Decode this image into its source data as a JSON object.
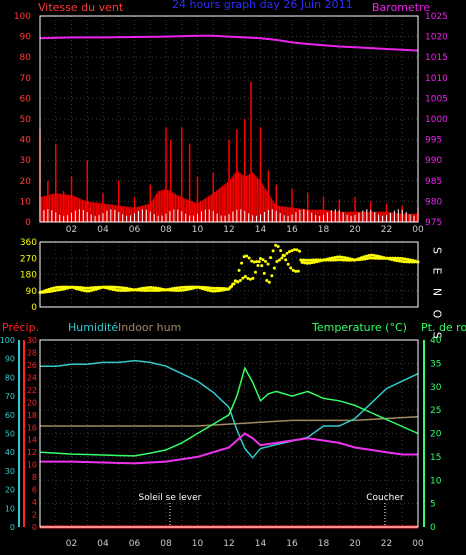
{
  "colors": {
    "background": "#000000",
    "frame": "#ffffff",
    "grid": "#3a3a3a",
    "wind_label": "#ff3b3b",
    "title": "#2d2dff",
    "baro": "#ee22ee",
    "wind_avg": "#ff0000",
    "wind_gust": "#ffffff",
    "wind_gust2": "#ffff66",
    "direction": "#ffff00",
    "precip": "#ff2222",
    "humidity": "#33cccc",
    "indoor_hum": "#a08a60",
    "temperature": "#33ff66",
    "dewpoint": "#ee33ee",
    "text_white": "#ffffff",
    "tick_label": "#cccccc"
  },
  "chart_data": [
    {
      "type": "line",
      "title": "24 hours graph day  26 Juin 2011",
      "ylabel_left": "Vitesse du vent",
      "ylabel_right": "Barometre",
      "left_ticks": [
        "0",
        "10",
        "20",
        "30",
        "40",
        "50",
        "60",
        "70",
        "80",
        "90",
        "100"
      ],
      "right_ticks": [
        "975",
        "980",
        "985",
        "990",
        "995",
        "1000",
        "1005",
        "1010",
        "1015",
        "1020",
        "1025"
      ],
      "x_ticks": [
        "02",
        "04",
        "06",
        "08",
        "10",
        "12",
        "14",
        "16",
        "18",
        "20",
        "22",
        "00"
      ],
      "ylim_left": [
        0,
        100
      ],
      "ylim_right": [
        975,
        1025
      ],
      "x_range_hours": [
        0,
        24
      ],
      "series": [
        {
          "name": "Barometre",
          "axis": "right",
          "x": [
            0,
            2,
            4,
            6,
            8,
            10,
            11,
            12,
            13,
            14,
            15,
            16,
            17,
            18,
            19,
            20,
            21,
            22,
            23,
            24
          ],
          "values": [
            1019.6,
            1019.8,
            1019.8,
            1019.9,
            1020.0,
            1020.2,
            1020.2,
            1020.0,
            1019.8,
            1019.6,
            1019.2,
            1018.6,
            1018.2,
            1017.9,
            1017.6,
            1017.4,
            1017.2,
            1017.0,
            1016.8,
            1016.6
          ]
        },
        {
          "name": "Vitesse moyenne",
          "axis": "left",
          "x": [
            0,
            1,
            2,
            3,
            4,
            5,
            6,
            7,
            7.5,
            8,
            8.5,
            9,
            10,
            11,
            12,
            12.5,
            13,
            13.5,
            14,
            14.5,
            15,
            16,
            17,
            18,
            19,
            20,
            21,
            22,
            23,
            24
          ],
          "values": [
            12,
            14,
            13,
            10,
            9,
            8,
            7,
            9,
            15,
            16,
            14,
            12,
            9,
            14,
            20,
            25,
            22,
            24,
            20,
            14,
            8,
            7,
            6,
            6,
            5,
            5,
            5,
            5,
            4,
            4
          ]
        },
        {
          "name": "Rafales",
          "axis": "left",
          "x": [
            0,
            0.5,
            1,
            1.5,
            2,
            3,
            4,
            5,
            6,
            7,
            8,
            8.3,
            9,
            9.5,
            10,
            11,
            12,
            12.5,
            13,
            13.4,
            14,
            14.5,
            15,
            16,
            17,
            18,
            19,
            20,
            21,
            22,
            23,
            24
          ],
          "values": [
            45,
            20,
            38,
            15,
            22,
            30,
            14,
            20,
            12,
            18,
            46,
            40,
            46,
            38,
            22,
            24,
            40,
            45,
            50,
            68,
            46,
            25,
            18,
            16,
            14,
            12,
            11,
            12,
            10,
            9,
            8,
            7
          ]
        }
      ]
    },
    {
      "type": "scatter",
      "title": "",
      "ylabel_right": "S E N O S",
      "ylim": [
        0,
        360
      ],
      "y_ticks": [
        "0",
        "90",
        "180",
        "270",
        "360"
      ],
      "series": [
        {
          "name": "Direction",
          "x": [
            0,
            1,
            2,
            3,
            4,
            5,
            6,
            7,
            8,
            9,
            10,
            11,
            12,
            12.5,
            13,
            13.5,
            14,
            14.5,
            15,
            15.5,
            16,
            17,
            18,
            19,
            20,
            21,
            22,
            23,
            24
          ],
          "values": [
            80,
            100,
            110,
            95,
            110,
            100,
            95,
            100,
            95,
            100,
            110,
            95,
            100,
            150,
            230,
            200,
            260,
            180,
            300,
            280,
            260,
            250,
            260,
            270,
            260,
            280,
            270,
            260,
            250
          ]
        }
      ]
    },
    {
      "type": "line",
      "title": "",
      "labels": {
        "precip": "Précip.",
        "humidity": "Humidité",
        "indoor_hum": "Indoor hum",
        "temperature": "Temperature (°C)",
        "dewpoint": "Pt. de rosée"
      },
      "precip_ticks": [
        "0",
        "2",
        "4",
        "6",
        "8",
        "10",
        "12",
        "14",
        "16",
        "18",
        "20",
        "22",
        "24",
        "26",
        "28",
        "30"
      ],
      "hum_ticks": [
        "0",
        "10",
        "20",
        "30",
        "40",
        "50",
        "60",
        "70",
        "80",
        "90",
        "100"
      ],
      "temp_ticks": [
        "0",
        "5",
        "10",
        "15",
        "20",
        "25",
        "30",
        "35",
        "40"
      ],
      "precip_ylim": [
        0,
        30
      ],
      "hum_ylim": [
        0,
        100
      ],
      "temp_ylim": [
        0,
        40
      ],
      "x_ticks": [
        "02",
        "04",
        "06",
        "08",
        "10",
        "12",
        "14",
        "16",
        "18",
        "20",
        "22",
        "00"
      ],
      "annotations": [
        {
          "text": "Soleil se lever",
          "hour": 8.25
        },
        {
          "text": "Coucher",
          "hour": 21.9
        }
      ],
      "series": [
        {
          "name": "Humidité",
          "axis": "hum",
          "x": [
            0,
            1,
            2,
            3,
            4,
            5,
            6,
            7,
            8,
            9,
            10,
            11,
            12,
            12.5,
            13,
            13.5,
            14,
            15,
            16,
            17,
            18,
            19,
            20,
            21,
            22,
            23,
            24
          ],
          "values": [
            86,
            86,
            87,
            87,
            88,
            88,
            89,
            88,
            86,
            82,
            78,
            72,
            64,
            52,
            42,
            37,
            42,
            44,
            46,
            48,
            54,
            54,
            58,
            66,
            74,
            78,
            82
          ]
        },
        {
          "name": "Indoor hum",
          "axis": "hum",
          "x": [
            0,
            6,
            10,
            12,
            14,
            16,
            18,
            20,
            22,
            24
          ],
          "values": [
            54,
            54,
            54,
            55,
            56,
            57,
            57,
            57,
            58,
            59
          ]
        },
        {
          "name": "Temperature",
          "axis": "temp",
          "x": [
            0,
            1,
            2,
            3,
            4,
            5,
            6,
            7,
            8,
            9,
            10,
            11,
            12,
            12.5,
            13,
            13.5,
            14,
            14.5,
            15,
            16,
            17,
            18,
            19,
            20,
            21,
            22,
            23,
            24
          ],
          "values": [
            16,
            15.8,
            15.6,
            15.5,
            15.4,
            15.3,
            15.2,
            15.8,
            16.5,
            18,
            20,
            22,
            24,
            28,
            34,
            31,
            27,
            28.5,
            29,
            28,
            29,
            27.5,
            27,
            26,
            24.5,
            23,
            21.5,
            20
          ]
        },
        {
          "name": "Pt. de rosée",
          "axis": "temp",
          "x": [
            0,
            2,
            4,
            6,
            8,
            10,
            12,
            13,
            13.5,
            14,
            15,
            16,
            17,
            18,
            19,
            20,
            21,
            22,
            23,
            24
          ],
          "values": [
            14,
            14,
            13.8,
            13.6,
            14,
            15,
            17,
            20,
            19,
            17.5,
            18,
            18.5,
            19,
            18.5,
            18,
            17,
            16.5,
            16,
            15.5,
            15.5
          ]
        },
        {
          "name": "Précip.",
          "axis": "precip",
          "x": [
            0,
            24
          ],
          "values": [
            0,
            0
          ]
        }
      ]
    }
  ]
}
